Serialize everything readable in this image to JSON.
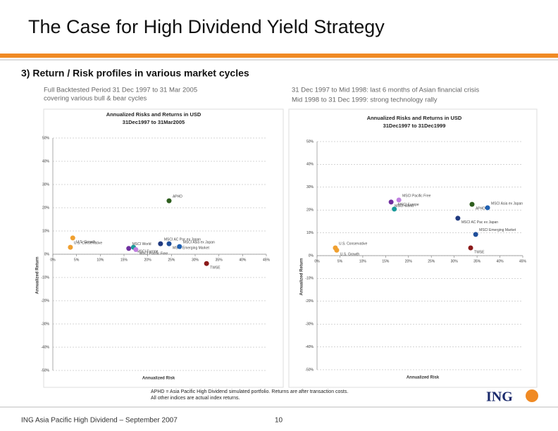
{
  "header": {
    "title": "The Case for High Dividend Yield Strategy",
    "subtitle": "3) Return / Risk profiles in various market cycles"
  },
  "captions": {
    "left": [
      "Full Backtested Period 31 Dec 1997 to 31 Mar 2005",
      "covering various bull & bear cycles"
    ],
    "right": [
      "31 Dec 1997 to Mid 1998: last 6 months of Asian financial crisis",
      "Mid 1998 to 31 Dec 1999: strong technology rally"
    ]
  },
  "footnote": [
    "APHD = Asia Pacific High Dividend simulated portfolio. Returns are after transaction costs.",
    "All other indices are actual index returns."
  ],
  "footer": {
    "text": "ING Asia Pacific High Dividend – September 2007",
    "page": "10",
    "logo": "ING"
  },
  "chart_data": [
    {
      "type": "scatter",
      "title": [
        "Annualized Risks and Returns in USD",
        "31Dec1997 to 31Mar2005"
      ],
      "x_label": "Annualized Risk",
      "y_label": "Annualized Return",
      "grid": true,
      "xlim": [
        0,
        45
      ],
      "ylim": [
        -50,
        50
      ],
      "xticks": [
        {
          "value": 0,
          "label": "0%"
        },
        {
          "value": 5,
          "label": "5%"
        },
        {
          "value": 10,
          "label": "10%"
        },
        {
          "value": 15,
          "label": "15%"
        },
        {
          "value": 20,
          "label": "20%"
        },
        {
          "value": 25,
          "label": "25%"
        },
        {
          "value": 30,
          "label": "30%"
        },
        {
          "value": 35,
          "label": "35%"
        },
        {
          "value": 40,
          "label": "40%"
        },
        {
          "value": 45,
          "label": "45%"
        }
      ],
      "yticks": [
        {
          "value": 50,
          "label": "50%"
        },
        {
          "value": 40,
          "label": "40%"
        },
        {
          "value": 30,
          "label": "30%"
        },
        {
          "value": 20,
          "label": "20%"
        },
        {
          "value": 10,
          "label": "10%"
        },
        {
          "value": 0,
          "label": "0%"
        },
        {
          "value": -10,
          "label": "-10%"
        },
        {
          "value": -20,
          "label": "-20%"
        },
        {
          "value": -30,
          "label": "-30%"
        },
        {
          "value": -40,
          "label": "-40%"
        },
        {
          "value": -50,
          "label": "-50%"
        }
      ],
      "points": [
        {
          "label": "APHD",
          "color": "#2e5e1e",
          "x": 24.5,
          "y": 23
        },
        {
          "label": "U.S. Growth",
          "color": "#f0a030",
          "x": 4.2,
          "y": 7
        },
        {
          "label": "U.S. Conservative",
          "color": "#f0a030",
          "x": 3.7,
          "y": 3
        },
        {
          "label": "MSCI Europe",
          "color": "#1a9a9a",
          "x": 17,
          "y": 3
        },
        {
          "label": "MSCI World",
          "color": "#7030a0",
          "x": 16,
          "y": 2.5
        },
        {
          "label": "MSCI Pacific Free",
          "color": "#c080e0",
          "x": 17.5,
          "y": 2
        },
        {
          "label": "MSCI AC Pac ex Japan",
          "color": "#203a80",
          "x": 22.7,
          "y": 4.5
        },
        {
          "label": "MSCI Emerging Market",
          "color": "#1f4e9a",
          "x": 24.5,
          "y": 4.5
        },
        {
          "label": "MSCI Asia ex Japan",
          "color": "#2060b0",
          "x": 26.7,
          "y": 3.3
        },
        {
          "label": "TWSE",
          "color": "#8b1a1a",
          "x": 32.4,
          "y": -4
        }
      ]
    },
    {
      "type": "scatter",
      "title": [
        "Annualized Risks and Returns in USD",
        "31Dec1997 to 31Dec1999"
      ],
      "x_label": "Annualized Risk",
      "y_label": "Annualized Return",
      "grid": true,
      "xlim": [
        0,
        45
      ],
      "ylim": [
        -50,
        50
      ],
      "xticks": [
        {
          "value": 0,
          "label": "0%"
        },
        {
          "value": 5,
          "label": "5%"
        },
        {
          "value": 10,
          "label": "10%"
        },
        {
          "value": 15,
          "label": "15%"
        },
        {
          "value": 20,
          "label": "20%"
        },
        {
          "value": 25,
          "label": "25%"
        },
        {
          "value": 30,
          "label": "30%"
        },
        {
          "value": 35,
          "label": "35%"
        },
        {
          "value": 40,
          "label": "40%"
        },
        {
          "value": 45,
          "label": "45%"
        }
      ],
      "yticks": [
        {
          "value": 50,
          "label": "50%"
        },
        {
          "value": 40,
          "label": "40%"
        },
        {
          "value": 30,
          "label": "30%"
        },
        {
          "value": 20,
          "label": "20%"
        },
        {
          "value": 10,
          "label": "10%"
        },
        {
          "value": 0,
          "label": "0%"
        },
        {
          "value": -10,
          "label": "-10%"
        },
        {
          "value": -20,
          "label": "-20%"
        },
        {
          "value": -30,
          "label": "-30%"
        },
        {
          "value": -40,
          "label": "-40%"
        },
        {
          "value": -50,
          "label": "-50%"
        }
      ],
      "points": [
        {
          "label": "MSCI Pacific Free",
          "color": "#c080e0",
          "x": 17.9,
          "y": 24.4
        },
        {
          "label": "MSCI World",
          "color": "#7030a0",
          "x": 16.2,
          "y": 23.5
        },
        {
          "label": "MSCI Europe",
          "color": "#1a9a9a",
          "x": 16.9,
          "y": 20.4
        },
        {
          "label": "APHD",
          "color": "#2e5e1e",
          "x": 33.9,
          "y": 22.5
        },
        {
          "label": "MSCI Asia ex Japan",
          "color": "#2060b0",
          "x": 37.3,
          "y": 21
        },
        {
          "label": "MSCI AC Pac ex Japan",
          "color": "#203a80",
          "x": 30.8,
          "y": 16.4
        },
        {
          "label": "MSCI Emerging Market",
          "color": "#1f4e9a",
          "x": 34.7,
          "y": 9.3
        },
        {
          "label": "TWSE",
          "color": "#8b1a1a",
          "x": 33.6,
          "y": 3.4
        },
        {
          "label": "U.S. Conservative",
          "color": "#f0a030",
          "x": 4,
          "y": 3.4
        },
        {
          "label": "U.S. Growth",
          "color": "#f0a030",
          "x": 4.3,
          "y": 2.4
        }
      ]
    }
  ]
}
